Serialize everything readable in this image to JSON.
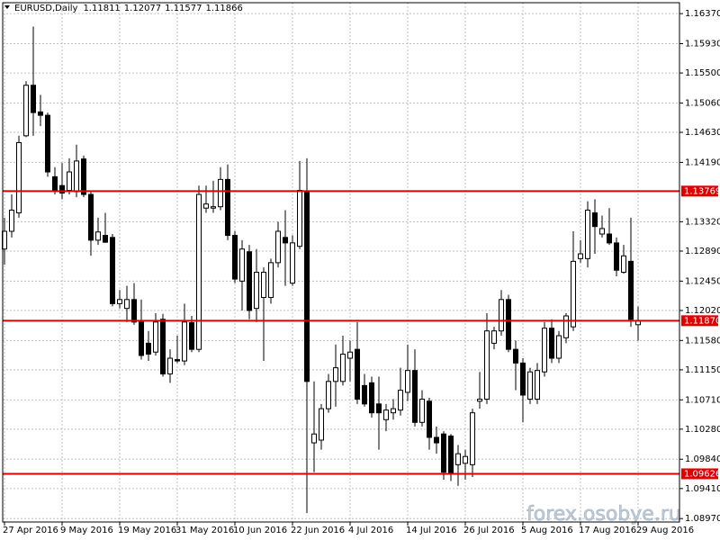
{
  "chart_data": {
    "type": "candlestick",
    "symbol": "EURUSD,Daily",
    "watermark": "forex.osobye.ru",
    "categories": [
      "27 Apr 2016",
      null,
      null,
      null,
      null,
      null,
      null,
      null,
      "9 May 2016",
      null,
      null,
      null,
      null,
      null,
      null,
      null,
      "19 May 2016",
      null,
      null,
      null,
      null,
      null,
      null,
      null,
      "31 May 2016",
      null,
      null,
      null,
      null,
      null,
      null,
      null,
      "10 Jun 2016",
      null,
      null,
      null,
      null,
      null,
      null,
      null,
      "22 Jun 2016",
      null,
      null,
      null,
      null,
      null,
      null,
      null,
      "4 Jul 2016",
      null,
      null,
      null,
      null,
      null,
      null,
      null,
      "14 Jul 2016",
      null,
      null,
      null,
      null,
      null,
      null,
      null,
      "26 Jul 2016",
      null,
      null,
      null,
      null,
      null,
      null,
      null,
      "5 Aug 2016",
      null,
      null,
      null,
      null,
      null,
      null,
      null,
      "17 Aug 2016",
      null,
      null,
      null,
      null,
      null,
      null,
      null,
      "29 Aug 2016"
    ],
    "open": [
      1.1292,
      1.1318,
      1.1345,
      1.1458,
      1.1532,
      1.1493,
      1.1488,
      1.1398,
      1.1385,
      1.1378,
      1.1376,
      1.1424,
      1.1372,
      1.1305,
      1.1312,
      1.1309,
      1.1212,
      1.1205,
      1.1218,
      1.1185,
      1.1154,
      1.1141,
      1.1189,
      1.1109,
      1.113,
      1.1128,
      1.1184,
      1.1145,
      1.1352,
      1.1352,
      1.1354,
      1.1394,
      1.1312,
      1.1245,
      1.1288,
      1.1205,
      1.1221,
      1.1221,
      1.1272,
      1.1309,
      1.1242,
      1.1296,
      1.1376,
      1.1008,
      1.1012,
      1.1058,
      1.1098,
      1.1098,
      1.1132,
      1.1145,
      1.1092,
      1.1096,
      1.1065,
      1.1042,
      1.1052,
      1.1056,
      1.1082,
      1.1114,
      1.1038,
      1.1069,
      1.1016,
      1.1021,
      1.1018,
      1.0976,
      1.0978,
      1.0976,
      1.1069,
      1.1072,
      1.1154,
      1.1172,
      1.1218,
      1.1145,
      1.1125,
      1.1072,
      1.1072,
      1.1112,
      1.1176,
      1.1132,
      1.1162,
      1.1178,
      1.1278,
      1.1278,
      1.1345,
      1.1314,
      1.1314,
      1.1301,
      1.1258,
      1.1274,
      1.11811
    ],
    "high": [
      1.1338,
      1.1372,
      1.1458,
      1.1538,
      1.1618,
      1.1518,
      1.1492,
      1.1412,
      1.1418,
      1.1425,
      1.1445,
      1.1429,
      1.1378,
      1.1338,
      1.1345,
      1.1314,
      1.1232,
      1.1238,
      1.1242,
      1.1218,
      1.1172,
      1.1198,
      1.1197,
      1.1145,
      1.1165,
      1.1212,
      1.1194,
      1.1385,
      1.1385,
      1.1392,
      1.1412,
      1.1416,
      1.1318,
      1.1305,
      1.1298,
      1.1292,
      1.1265,
      1.1278,
      1.1332,
      1.1349,
      1.1312,
      1.1421,
      1.1425,
      1.1098,
      1.1065,
      1.1109,
      1.1152,
      1.1165,
      1.1158,
      1.1185,
      1.1109,
      1.1105,
      1.1105,
      1.1065,
      1.1072,
      1.1118,
      1.1152,
      1.1145,
      1.1085,
      1.1074,
      1.1032,
      1.1025,
      1.1021,
      1.1005,
      1.0998,
      1.1058,
      1.1112,
      1.1198,
      1.1178,
      1.1232,
      1.1225,
      1.1158,
      1.1132,
      1.1118,
      1.1125,
      1.1185,
      1.1189,
      1.1172,
      1.1198,
      1.1318,
      1.1305,
      1.1362,
      1.1365,
      1.1341,
      1.1352,
      1.1309,
      1.1298,
      1.1338,
      1.12077
    ],
    "low": [
      1.1269,
      1.1309,
      1.1338,
      1.1456,
      1.1458,
      1.1472,
      1.1398,
      1.1372,
      1.1365,
      1.1372,
      1.1368,
      1.1368,
      1.1282,
      1.1298,
      1.1301,
      1.1208,
      1.1205,
      1.1185,
      1.1181,
      1.113,
      1.1128,
      1.1136,
      1.1105,
      1.1096,
      1.1125,
      1.1122,
      1.1141,
      1.1141,
      1.1345,
      1.1345,
      1.1349,
      1.1305,
      1.1242,
      1.1202,
      1.1189,
      1.1185,
      1.1128,
      1.1212,
      1.1265,
      1.1238,
      1.1238,
      1.1292,
      1.0905,
      1.0965,
      1.0998,
      1.1052,
      1.1061,
      1.1092,
      1.1098,
      1.1065,
      1.1061,
      1.1045,
      1.0998,
      1.1025,
      1.1042,
      1.1048,
      1.1069,
      1.1032,
      1.1032,
      1.0998,
      1.0992,
      1.0954,
      1.0952,
      1.0945,
      1.0954,
      1.0958,
      1.1058,
      1.1065,
      1.1145,
      1.1165,
      1.1141,
      1.1085,
      1.1038,
      1.1065,
      1.1065,
      1.1105,
      1.1125,
      1.1125,
      1.1154,
      1.1172,
      1.1272,
      1.1265,
      1.1285,
      1.1309,
      1.1298,
      1.1252,
      1.1256,
      1.1178,
      1.11577
    ],
    "close": [
      1.1318,
      1.1349,
      1.1448,
      1.1532,
      1.1492,
      1.1488,
      1.1405,
      1.1378,
      1.1374,
      1.1405,
      1.1421,
      1.1372,
      1.1305,
      1.1317,
      1.1302,
      1.1212,
      1.1218,
      1.1218,
      1.1185,
      1.1136,
      1.1138,
      1.1185,
      1.1109,
      1.1132,
      1.1128,
      1.1185,
      1.1145,
      1.1372,
      1.1358,
      1.1354,
      1.1394,
      1.1312,
      1.1248,
      1.1292,
      1.1202,
      1.1258,
      1.1258,
      1.1272,
      1.1318,
      1.1301,
      1.1301,
      1.1378,
      1.1098,
      1.1021,
      1.1058,
      1.1098,
      1.1118,
      1.1138,
      1.1141,
      1.1072,
      1.1065,
      1.1052,
      1.1052,
      1.1056,
      1.1058,
      1.1085,
      1.1114,
      1.1038,
      1.1072,
      1.1016,
      1.1008,
      1.0965,
      1.0962,
      1.0992,
      1.0988,
      1.1052,
      1.1072,
      1.1172,
      1.1172,
      1.1218,
      1.1145,
      1.1125,
      1.1078,
      1.1112,
      1.1114,
      1.1176,
      1.1132,
      1.1165,
      1.1194,
      1.1274,
      1.1285,
      1.1349,
      1.1325,
      1.1322,
      1.1301,
      1.1261,
      1.1282,
      1.1189,
      1.11866
    ],
    "up_color": "#ffffff",
    "down_color": "#000000",
    "color": "#000000",
    "ylim": [
      1.0892,
      1.1653
    ],
    "yticks": [
      {
        "value": 1.1637,
        "label": "1.16370"
      },
      {
        "value": 1.1593,
        "label": "1.15930"
      },
      {
        "value": 1.155,
        "label": "1.15500"
      },
      {
        "value": 1.1506,
        "label": "1.15060"
      },
      {
        "value": 1.1463,
        "label": "1.14630"
      },
      {
        "value": 1.1419,
        "label": "1.14190"
      },
      {
        "value": 1.1332,
        "label": "1.13320"
      },
      {
        "value": 1.1289,
        "label": "1.12890"
      },
      {
        "value": 1.1245,
        "label": "1.12450"
      },
      {
        "value": 1.1202,
        "label": "1.12020"
      },
      {
        "value": 1.1158,
        "label": "1.11580"
      },
      {
        "value": 1.1115,
        "label": "1.11150"
      },
      {
        "value": 1.1071,
        "label": "1.10710"
      },
      {
        "value": 1.1028,
        "label": "1.10280"
      },
      {
        "value": 1.0984,
        "label": "1.09840"
      },
      {
        "value": 1.0941,
        "label": "1.09410"
      },
      {
        "value": 1.0897,
        "label": "1.08970"
      }
    ],
    "levels": [
      {
        "value": 1.13769
      },
      {
        "value": 1.1187,
        "label": "1.11870"
      },
      {
        "value": 1.09626
      }
    ],
    "level_color": "#e00000",
    "grid": true
  }
}
